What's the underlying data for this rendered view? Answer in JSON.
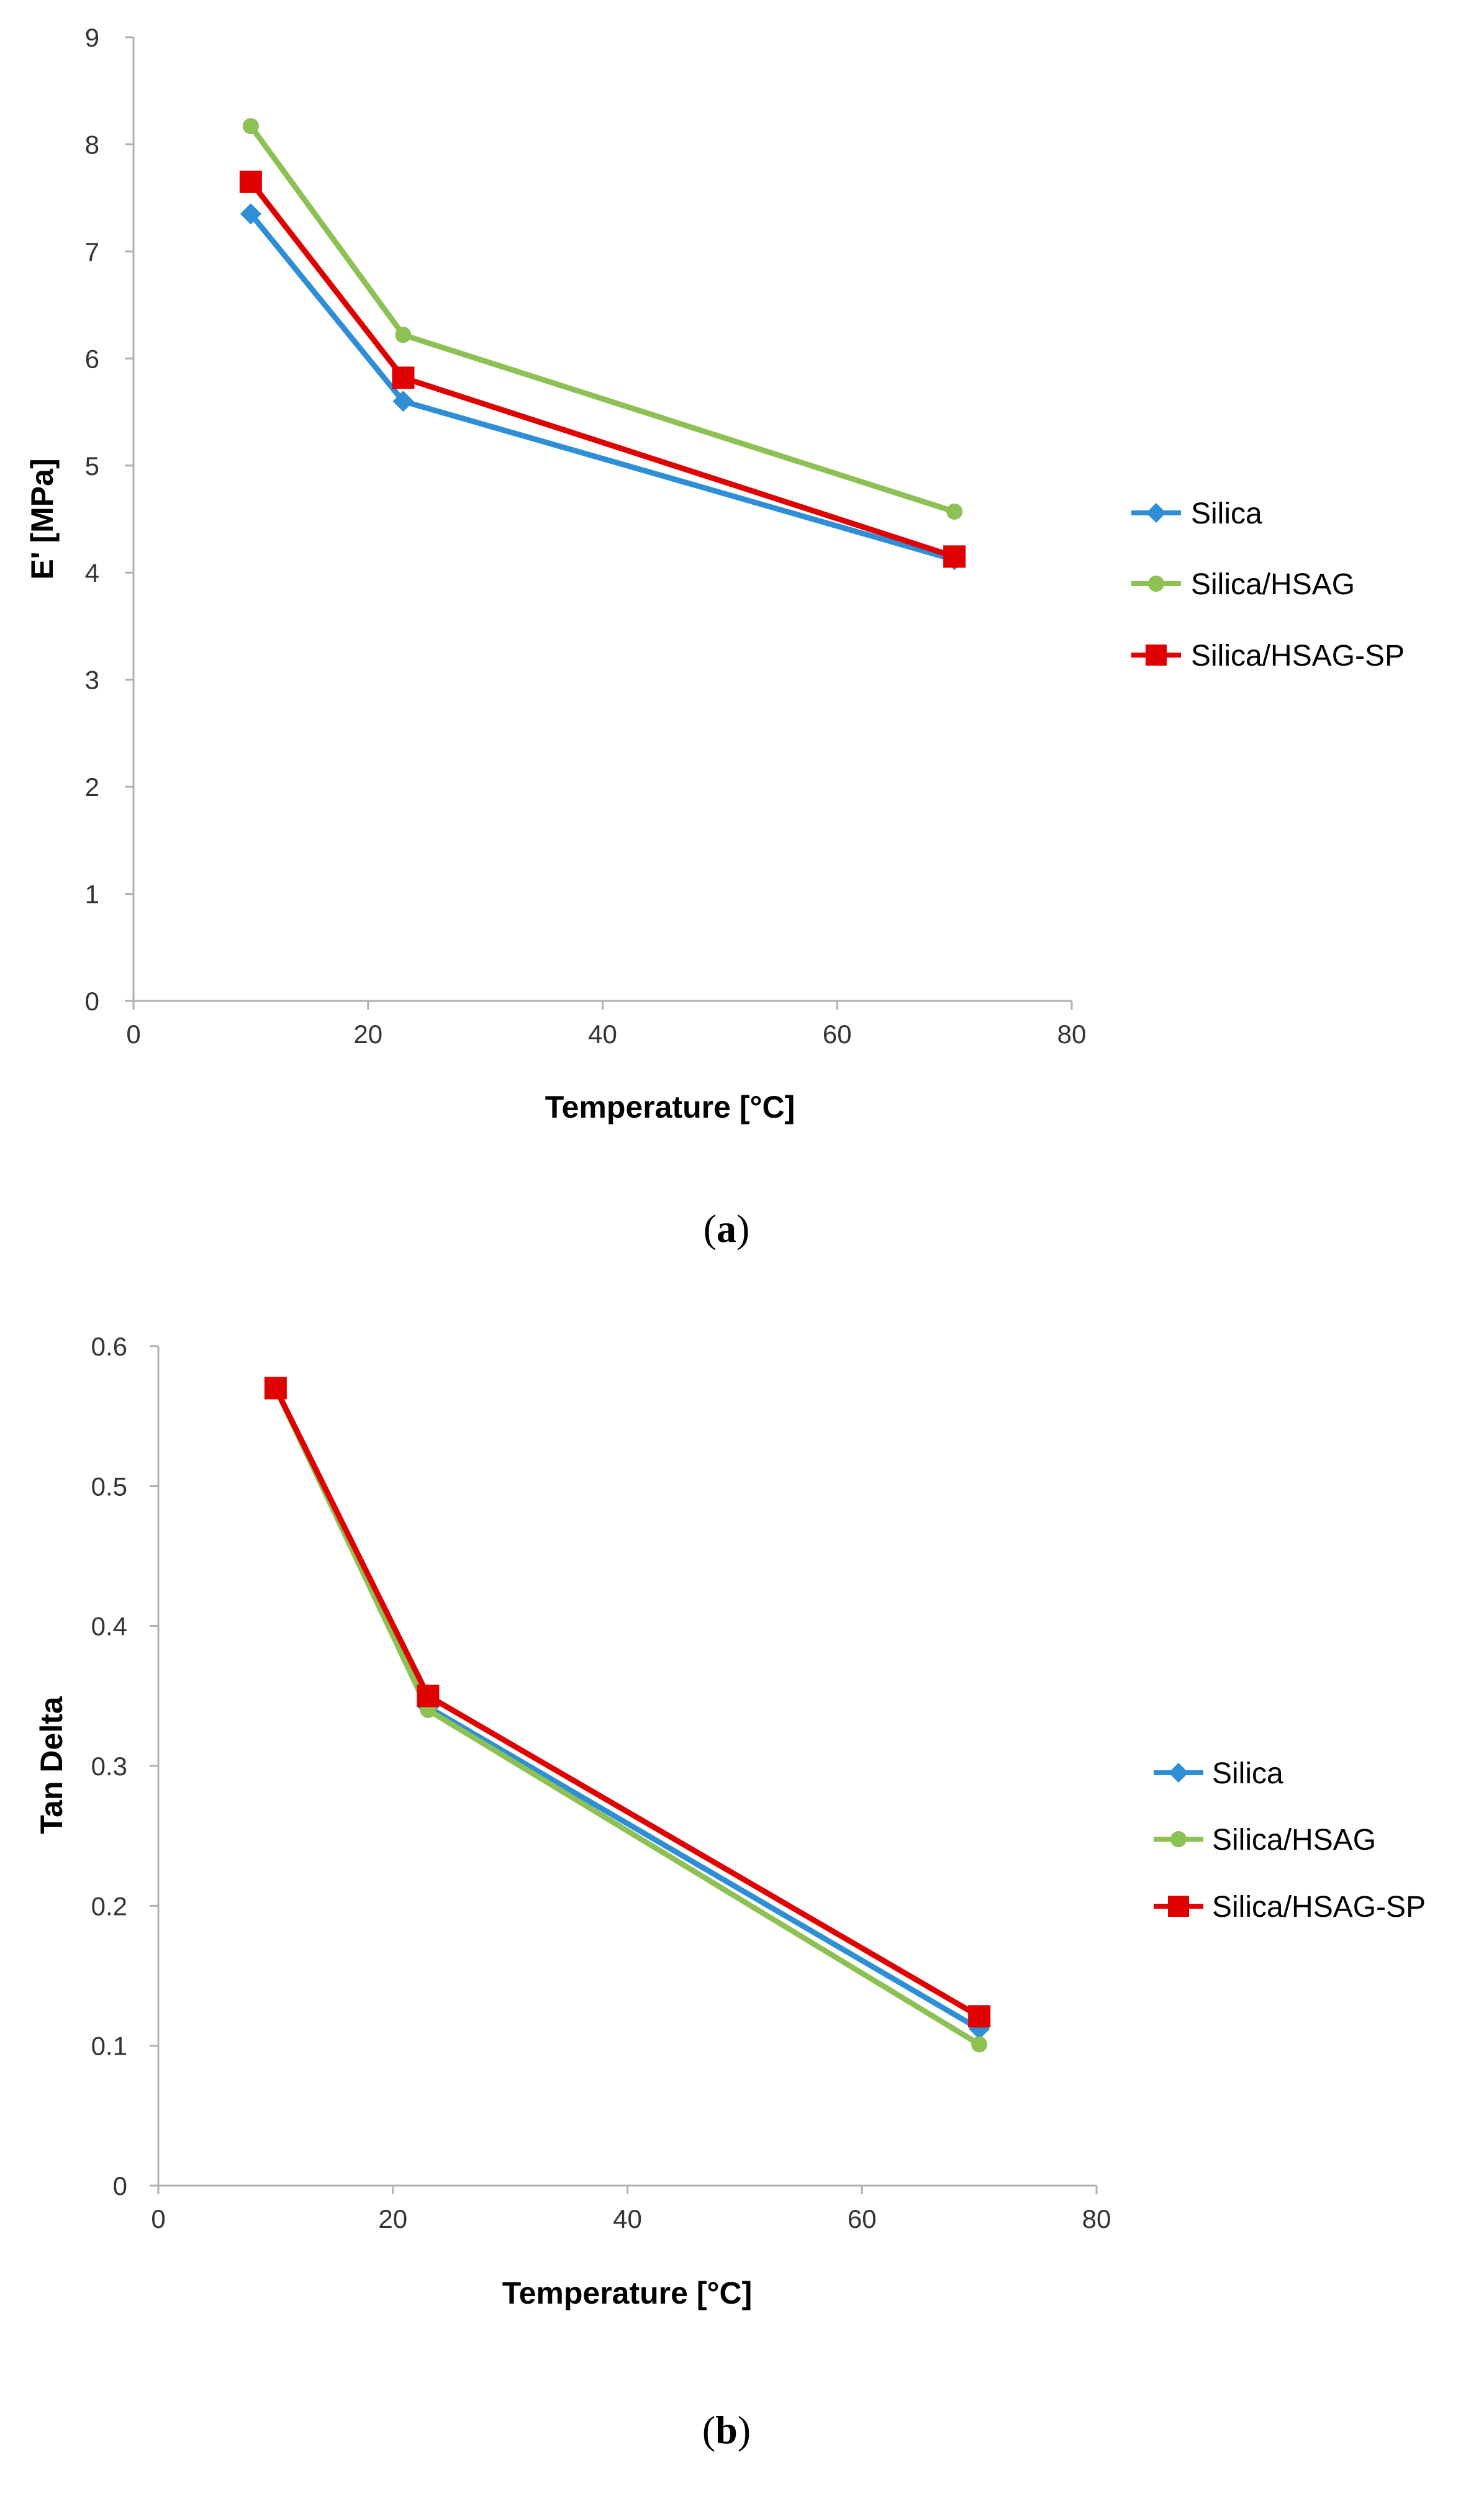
{
  "chart_data": [
    {
      "type": "line",
      "caption_letter": "a",
      "xlabel": "Temperature [°C]",
      "ylabel": "E' [MPa]",
      "xlim": [
        0,
        80
      ],
      "ylim": [
        0,
        9
      ],
      "x_ticks": [
        "0",
        "20",
        "40",
        "60",
        "80"
      ],
      "y_ticks": [
        "0",
        "1",
        "2",
        "3",
        "4",
        "5",
        "6",
        "7",
        "8",
        "9"
      ],
      "x_tick_values": [
        0,
        20,
        40,
        60,
        80
      ],
      "y_tick_values": [
        0,
        1,
        2,
        3,
        4,
        5,
        6,
        7,
        8,
        9
      ],
      "grid": false,
      "legend_position": "right",
      "series": [
        {
          "name": "Silica",
          "color": "#2E8FD6",
          "marker": "diamond",
          "x": [
            10,
            23,
            70
          ],
          "y": [
            7.35,
            5.6,
            4.12
          ]
        },
        {
          "name": "Silica/HSAG",
          "color": "#8DC153",
          "marker": "circle",
          "x": [
            10,
            23,
            70
          ],
          "y": [
            8.17,
            6.22,
            4.57
          ]
        },
        {
          "name": "Silica/HSAG-SP",
          "color": "#E00000",
          "marker": "square",
          "x": [
            10,
            23,
            70
          ],
          "y": [
            7.65,
            5.82,
            4.15
          ]
        }
      ]
    },
    {
      "type": "line",
      "caption_letter": "b",
      "xlabel": "Temperature [°C]",
      "ylabel": "Tan Delta",
      "xlim": [
        0,
        80
      ],
      "ylim": [
        0,
        0.6
      ],
      "x_ticks": [
        "0",
        "20",
        "40",
        "60",
        "80"
      ],
      "y_ticks": [
        "0",
        "0.1",
        "0.2",
        "0.3",
        "0.4",
        "0.5",
        "0.6"
      ],
      "x_tick_values": [
        0,
        20,
        40,
        60,
        80
      ],
      "y_tick_values": [
        0,
        0.1,
        0.2,
        0.3,
        0.4,
        0.5,
        0.6
      ],
      "grid": false,
      "legend_position": "right",
      "series": [
        {
          "name": "Silica",
          "color": "#2E8FD6",
          "marker": "diamond",
          "x": [
            10,
            23,
            70
          ],
          "y": [
            0.57,
            0.342,
            0.112
          ]
        },
        {
          "name": "Silica/HSAG",
          "color": "#8DC153",
          "marker": "circle",
          "x": [
            10,
            23,
            70
          ],
          "y": [
            0.57,
            0.34,
            0.101
          ]
        },
        {
          "name": "Silica/HSAG-SP",
          "color": "#E00000",
          "marker": "square",
          "x": [
            10,
            23,
            70
          ],
          "y": [
            0.57,
            0.35,
            0.121
          ]
        }
      ]
    }
  ]
}
